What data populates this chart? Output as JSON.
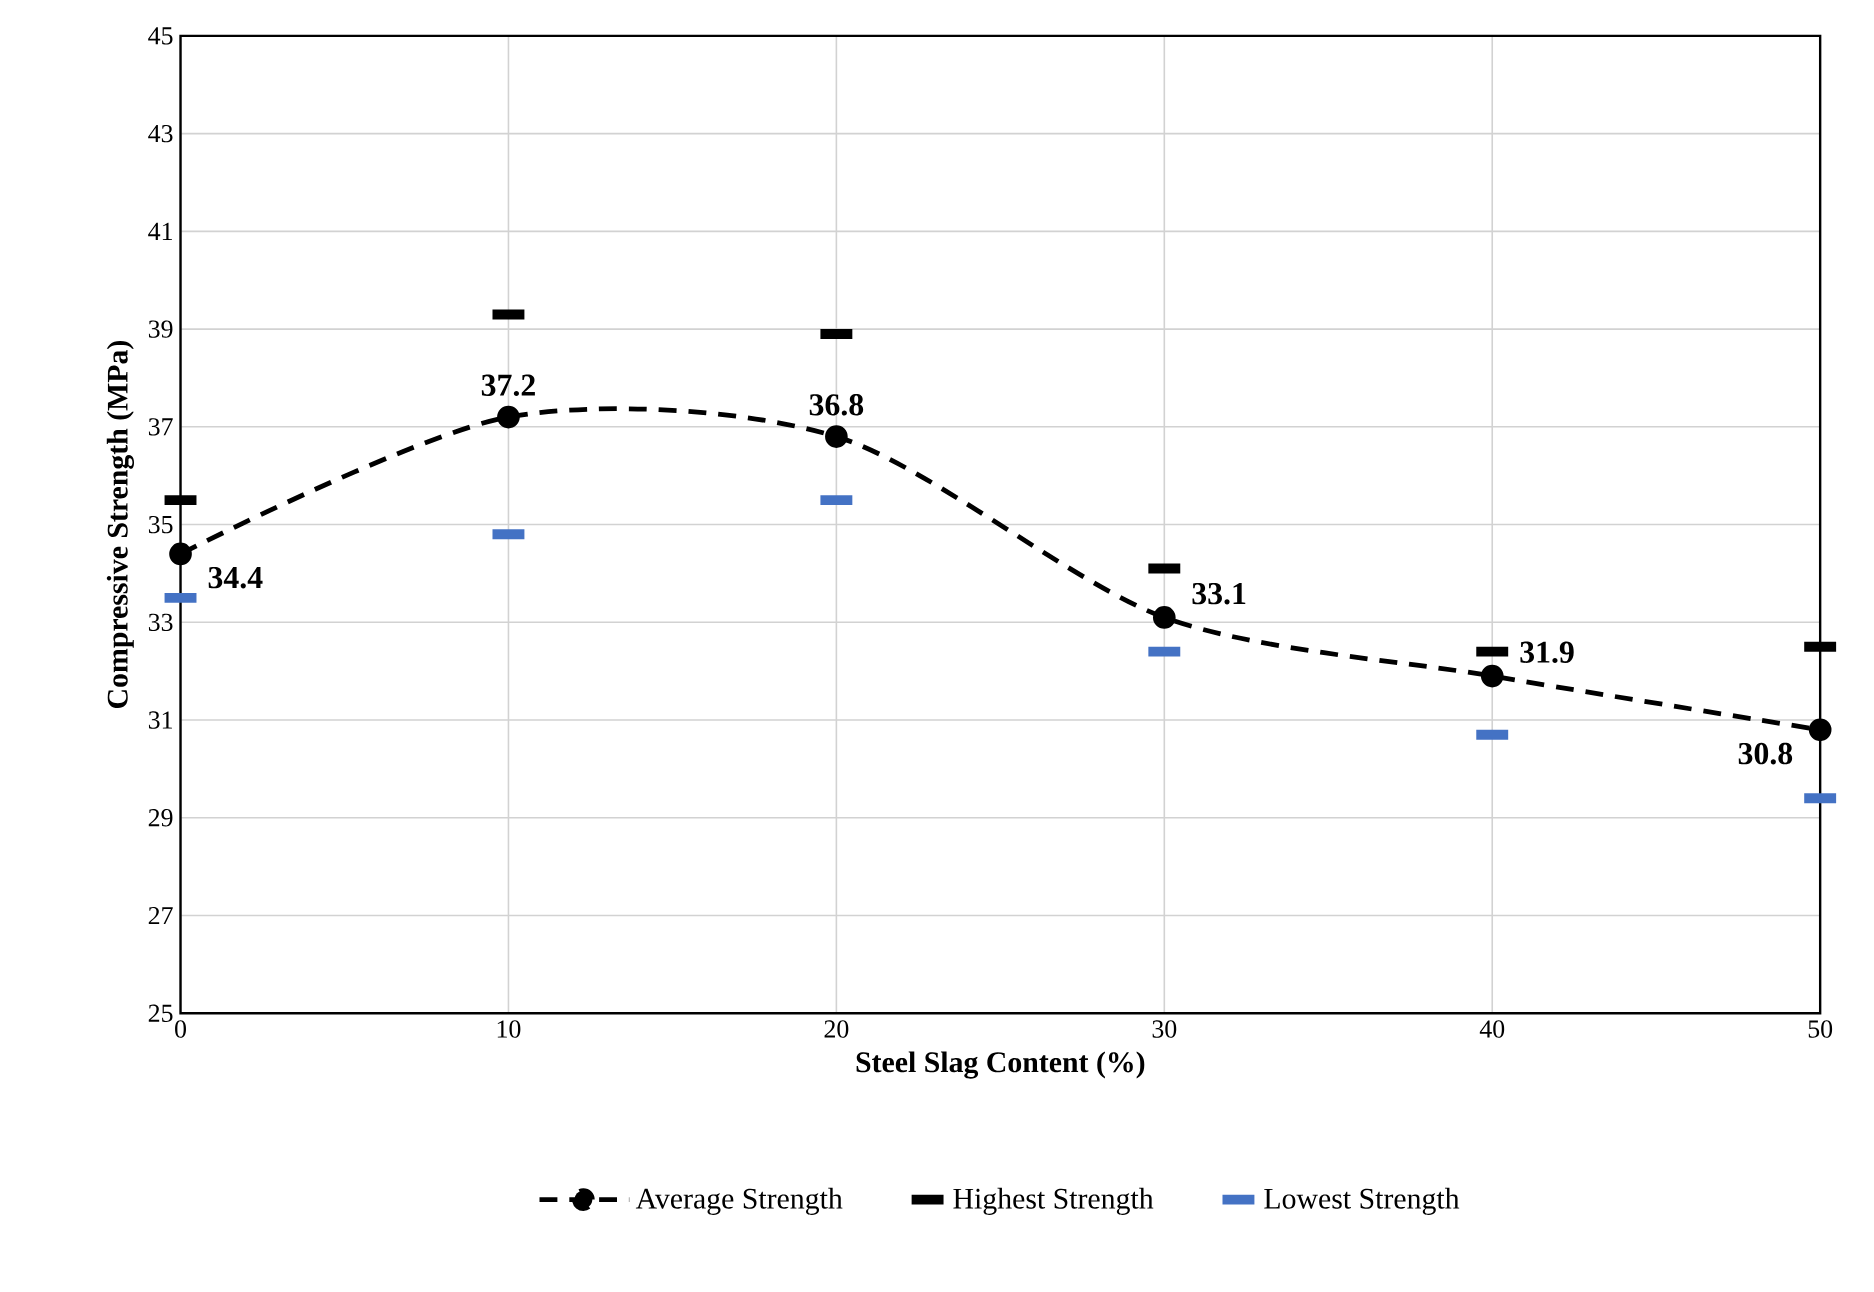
{
  "chart_data": {
    "type": "line",
    "xlabel": "Steel Slag Content (%)",
    "ylabel": "Compressive Strength (MPa)",
    "x": [
      0,
      10,
      20,
      30,
      40,
      50
    ],
    "xlim": [
      0,
      50
    ],
    "xticks": [
      0,
      10,
      20,
      30,
      40,
      50
    ],
    "ylim": [
      25,
      45
    ],
    "yticks": [
      25,
      27,
      29,
      31,
      33,
      35,
      37,
      39,
      41,
      43,
      45
    ],
    "grid": true,
    "legend": "bottom",
    "series": [
      {
        "name": "Average Strength",
        "color": "#000000",
        "marker": "circle",
        "line_style": "dashed",
        "values": [
          34.4,
          37.2,
          36.8,
          33.1,
          31.9,
          30.8
        ],
        "value_labels": [
          "34.4",
          "37.2",
          "36.8",
          "33.1",
          "31.9",
          "30.8"
        ]
      },
      {
        "name": "Highest Strength",
        "type": "scatter",
        "color": "#000000",
        "values": [
          35.5,
          39.3,
          38.9,
          34.1,
          32.4,
          32.5
        ]
      },
      {
        "name": "Lowest Strength",
        "type": "scatter",
        "color": "#4472c4",
        "values": [
          33.5,
          34.8,
          35.5,
          32.4,
          30.7,
          29.4
        ]
      }
    ]
  }
}
